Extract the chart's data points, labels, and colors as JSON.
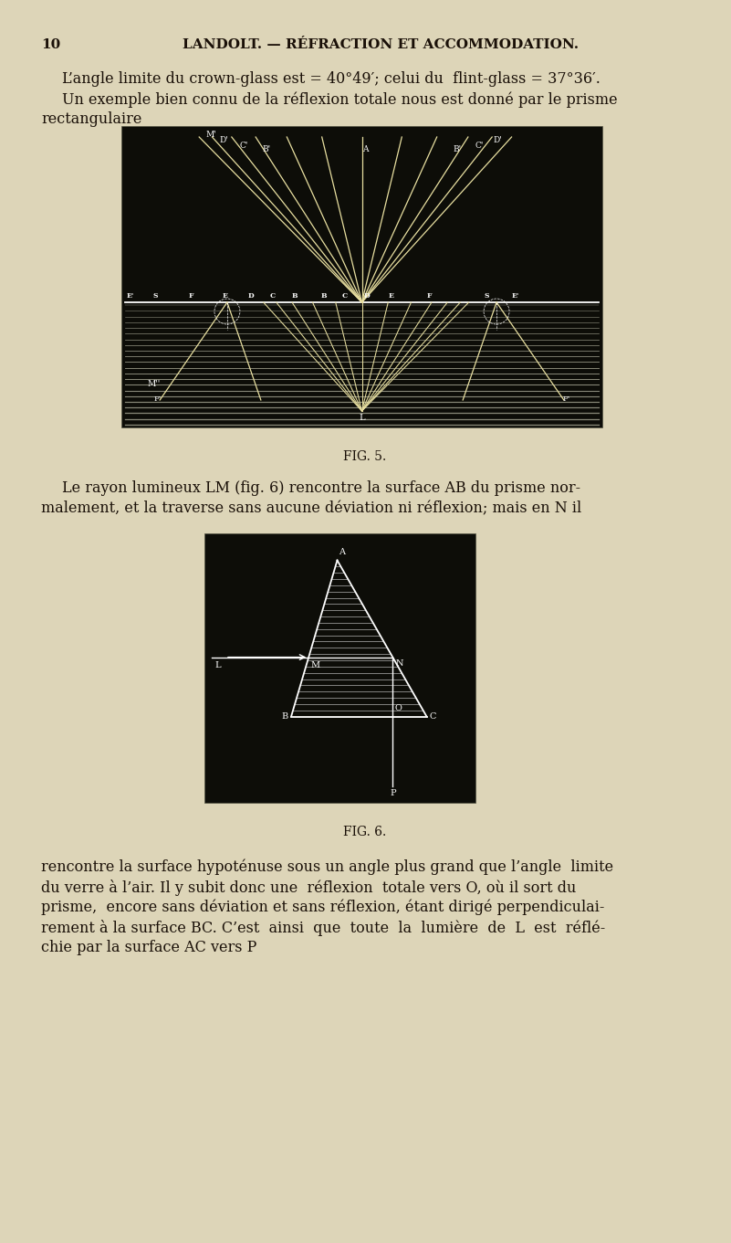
{
  "page_bg": "#ddd5b8",
  "page_width": 8.01,
  "page_height": 13.61,
  "fig5_bg": "#0d0d08",
  "fig6_bg": "#0d0d08",
  "text_color": "#1a1008",
  "white": "#ffffff",
  "ray_color": "#e8dfa0",
  "stripe_color": "#888878",
  "header_num": "10",
  "header_title": "LANDOLT. — RÉFRACTION ET ACCOMMODATION.",
  "p1l1": "L’angle limite du crown-glass est = 40°49′; celui du  flint-glass = 37°36′.",
  "p1l2": "Un exemple bien connu de la réflexion totale nous est donné par le prisme",
  "p1l3": "rectangulaire",
  "fig5_cap": "FIG. 5.",
  "p2l1": "Le rayon lumineux LM (fig. 6) rencontre la surface AB du prisme nor-",
  "p2l2": "malement, et la traverse sans aucune déviation ni réflexion; mais en N il",
  "fig6_cap": "FIG. 6.",
  "p3l1": "rencontre la surface hypoténuse sous un angle plus grand que l’angle  limite",
  "p3l2": "du verre à l’air. Il y subit donc une  réflexion  totale vers O, où il sort du",
  "p3l3": "prisme,  encore sans déviation et sans réflexion, étant dirigé perpendiculai-",
  "p3l4": "rement à la surface BC. C’est  ainsi  que  toute  la  lumière  de  L  est  réflé-",
  "p3l5": "chie par la surface AC vers P"
}
